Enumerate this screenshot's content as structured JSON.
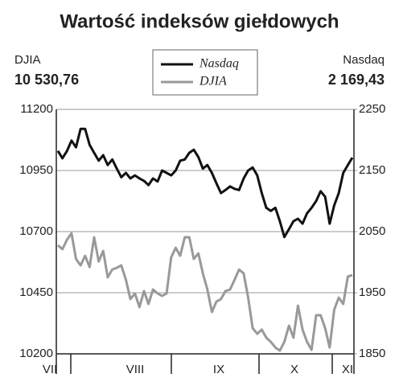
{
  "chart_data": {
    "type": "line",
    "title": "Wartość indeksów giełdowych",
    "headline": {
      "left_label": "DJIA",
      "left_value": "10 530,76",
      "right_label": "Nasdaq",
      "right_value": "2 169,43"
    },
    "months": [
      "VII",
      "VIII",
      "IX",
      "X",
      "XI"
    ],
    "ylim": [
      10200,
      11200
    ],
    "yticks": [
      10200,
      10450,
      10700,
      10950,
      11200
    ],
    "y2lim": [
      1850,
      2250
    ],
    "y2ticks": [
      1850,
      1950,
      2050,
      2150,
      2250
    ],
    "grid": true,
    "series": [
      {
        "name": "Nasdaq",
        "color": "#111111",
        "axis": "y2",
        "values": [
          2182,
          2170,
          2182,
          2199,
          2188,
          2218,
          2218,
          2192,
          2179,
          2166,
          2175,
          2159,
          2168,
          2153,
          2139,
          2146,
          2137,
          2142,
          2137,
          2133,
          2126,
          2137,
          2132,
          2150,
          2146,
          2142,
          2150,
          2166,
          2168,
          2179,
          2184,
          2172,
          2153,
          2159,
          2146,
          2129,
          2113,
          2118,
          2124,
          2120,
          2118,
          2137,
          2150,
          2155,
          2142,
          2113,
          2089,
          2084,
          2089,
          2067,
          2041,
          2054,
          2067,
          2071,
          2063,
          2080,
          2089,
          2100,
          2116,
          2107,
          2063,
          2093,
          2113,
          2146,
          2159,
          2171
        ]
      },
      {
        "name": "DJIA",
        "color": "#999999",
        "values": [
          10644,
          10628,
          10667,
          10693,
          10588,
          10562,
          10601,
          10555,
          10677,
          10578,
          10621,
          10513,
          10545,
          10552,
          10562,
          10503,
          10424,
          10447,
          10391,
          10457,
          10404,
          10463,
          10447,
          10437,
          10447,
          10595,
          10634,
          10601,
          10677,
          10677,
          10588,
          10611,
          10529,
          10463,
          10371,
          10414,
          10424,
          10457,
          10463,
          10503,
          10545,
          10529,
          10430,
          10305,
          10282,
          10299,
          10266,
          10249,
          10226,
          10213,
          10249,
          10315,
          10266,
          10397,
          10299,
          10249,
          10216,
          10358,
          10358,
          10305,
          10226,
          10381,
          10430,
          10404,
          10516,
          10522
        ]
      }
    ]
  }
}
